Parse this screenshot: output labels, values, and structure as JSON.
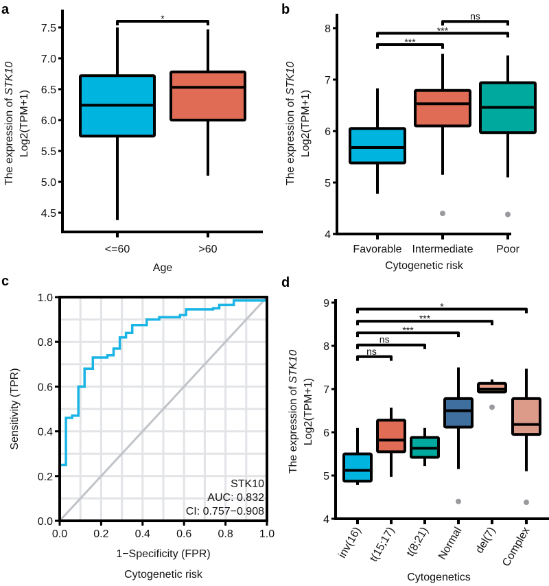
{
  "panel_labels": [
    "a",
    "b",
    "c",
    "d"
  ],
  "chart_data": [
    {
      "id": "a",
      "type": "box",
      "ylabel_line1_prefix": "The expression of ",
      "ylabel_gene": "STK10",
      "ylabel_line2": "Log2(TPM+1)",
      "xlabel": "Age",
      "ylim": [
        4.3,
        7.72
      ],
      "yticks": [
        4.5,
        5.0,
        5.5,
        6.0,
        6.5,
        7.0,
        7.5
      ],
      "ytick_labels": [
        "4.5",
        "5.0",
        "5.5",
        "6.0",
        "6.5",
        "7.0",
        "7.5"
      ],
      "categories": [
        "<=60",
        ">60"
      ],
      "boxes": [
        {
          "min": 4.38,
          "q1": 5.74,
          "median": 6.24,
          "q3": 6.72,
          "max": 7.5,
          "outliers": [],
          "color": "#00b4e0"
        },
        {
          "min": 5.1,
          "q1": 6.0,
          "median": 6.53,
          "q3": 6.78,
          "max": 7.47,
          "outliers": [],
          "color": "#e06c55"
        }
      ],
      "comparisons": [
        {
          "from": 0,
          "to": 1,
          "y": 7.6,
          "label": "*"
        }
      ]
    },
    {
      "id": "b",
      "type": "box",
      "ylabel_line1_prefix": "The expression of ",
      "ylabel_gene": "STK10",
      "ylabel_line2": "Log2(TPM+1)",
      "xlabel": "Cytogenetic risk",
      "ylim": [
        4,
        8.28
      ],
      "yticks": [
        4,
        5,
        6,
        7,
        8
      ],
      "ytick_labels": [
        "4",
        "5",
        "6",
        "7",
        "8"
      ],
      "categories": [
        "Favorable",
        "Intermediate",
        "Poor"
      ],
      "boxes": [
        {
          "min": 4.78,
          "q1": 5.38,
          "median": 5.68,
          "q3": 6.05,
          "max": 6.83,
          "outliers": [],
          "color": "#00b4e0"
        },
        {
          "min": 5.15,
          "q1": 6.1,
          "median": 6.53,
          "q3": 6.79,
          "max": 7.5,
          "outliers": [
            4.4
          ],
          "color": "#e06c55"
        },
        {
          "min": 5.1,
          "q1": 5.97,
          "median": 6.46,
          "q3": 6.94,
          "max": 7.47,
          "outliers": [
            4.38
          ],
          "color": "#00a99d"
        }
      ],
      "comparisons": [
        {
          "from": 0,
          "to": 1,
          "y": 7.68,
          "label": "***"
        },
        {
          "from": 0,
          "to": 2,
          "y": 7.9,
          "label": "***"
        },
        {
          "from": 1,
          "to": 2,
          "y": 8.13,
          "label": "ns"
        }
      ]
    },
    {
      "id": "c",
      "type": "line",
      "xlabel": "1−Specificity (FPR)",
      "ylabel": "Sensitivity (TPR)",
      "caption": "Cytogenetic risk",
      "xlim": [
        0,
        1
      ],
      "ylim": [
        0,
        1
      ],
      "ticks": [
        0,
        0.2,
        0.4,
        0.6,
        0.8,
        1.0
      ],
      "tick_labels": [
        "0.0",
        "0.2",
        "0.4",
        "0.6",
        "0.8",
        "1.0"
      ],
      "grid": true,
      "annotation": [
        "STK10",
        "AUC: 0.832",
        "CI: 0.757−0.908"
      ],
      "roc_color": "#1ab5e5",
      "diagonal_color": "#c0c3c8",
      "fpr": [
        0,
        0,
        0.03,
        0.03,
        0.06,
        0.06,
        0.09,
        0.09,
        0.12,
        0.12,
        0.16,
        0.16,
        0.23,
        0.23,
        0.26,
        0.26,
        0.29,
        0.29,
        0.32,
        0.32,
        0.35,
        0.35,
        0.42,
        0.42,
        0.48,
        0.48,
        0.58,
        0.58,
        0.61,
        0.61,
        0.74,
        0.74,
        0.77,
        0.77,
        0.84,
        0.84,
        1.0
      ],
      "tpr": [
        0,
        0.25,
        0.25,
        0.46,
        0.46,
        0.47,
        0.47,
        0.6,
        0.6,
        0.68,
        0.68,
        0.73,
        0.73,
        0.74,
        0.74,
        0.77,
        0.77,
        0.82,
        0.82,
        0.84,
        0.84,
        0.875,
        0.875,
        0.9,
        0.9,
        0.91,
        0.91,
        0.92,
        0.92,
        0.945,
        0.945,
        0.95,
        0.95,
        0.965,
        0.965,
        0.985,
        0.985
      ]
    },
    {
      "id": "d",
      "type": "box",
      "ylabel_line1_prefix": "The expression of ",
      "ylabel_gene": "STK10",
      "ylabel_line2": "Log2(TPM+1)",
      "xlabel": "Cytogenetics",
      "ylim": [
        4,
        9.1
      ],
      "yticks": [
        4,
        5,
        6,
        7,
        8,
        9
      ],
      "ytick_labels": [
        "4",
        "5",
        "6",
        "7",
        "8",
        "9"
      ],
      "categories": [
        "inv(16)",
        "t(15;17)",
        "t(8;21)",
        "Normal",
        "del(7)",
        "Complex"
      ],
      "boxes": [
        {
          "min": 4.78,
          "q1": 4.87,
          "median": 5.12,
          "q3": 5.5,
          "max": 6.1,
          "outliers": [],
          "color": "#00b4e0"
        },
        {
          "min": 4.97,
          "q1": 5.55,
          "median": 5.82,
          "q3": 6.28,
          "max": 6.57,
          "outliers": [],
          "color": "#e06c55"
        },
        {
          "min": 5.22,
          "q1": 5.42,
          "median": 5.63,
          "q3": 5.88,
          "max": 6.1,
          "outliers": [],
          "color": "#00a99d"
        },
        {
          "min": 5.15,
          "q1": 6.12,
          "median": 6.5,
          "q3": 6.78,
          "max": 7.5,
          "outliers": [
            4.4
          ],
          "color": "#3f6f9f"
        },
        {
          "min": 6.93,
          "q1": 6.93,
          "median": 7.0,
          "q3": 7.13,
          "max": 7.22,
          "outliers": [
            6.58
          ],
          "color": "#e8a08a"
        },
        {
          "min": 5.1,
          "q1": 5.95,
          "median": 6.18,
          "q3": 6.78,
          "max": 7.47,
          "outliers": [
            4.38
          ],
          "color": "#dc9a88"
        }
      ],
      "comparisons": [
        {
          "from": 0,
          "to": 1,
          "y": 7.75,
          "label": "ns"
        },
        {
          "from": 0,
          "to": 2,
          "y": 8.02,
          "label": "ns"
        },
        {
          "from": 0,
          "to": 3,
          "y": 8.3,
          "label": "***"
        },
        {
          "from": 0,
          "to": 4,
          "y": 8.57,
          "label": "***"
        },
        {
          "from": 0,
          "to": 5,
          "y": 8.85,
          "label": "*"
        }
      ]
    }
  ]
}
